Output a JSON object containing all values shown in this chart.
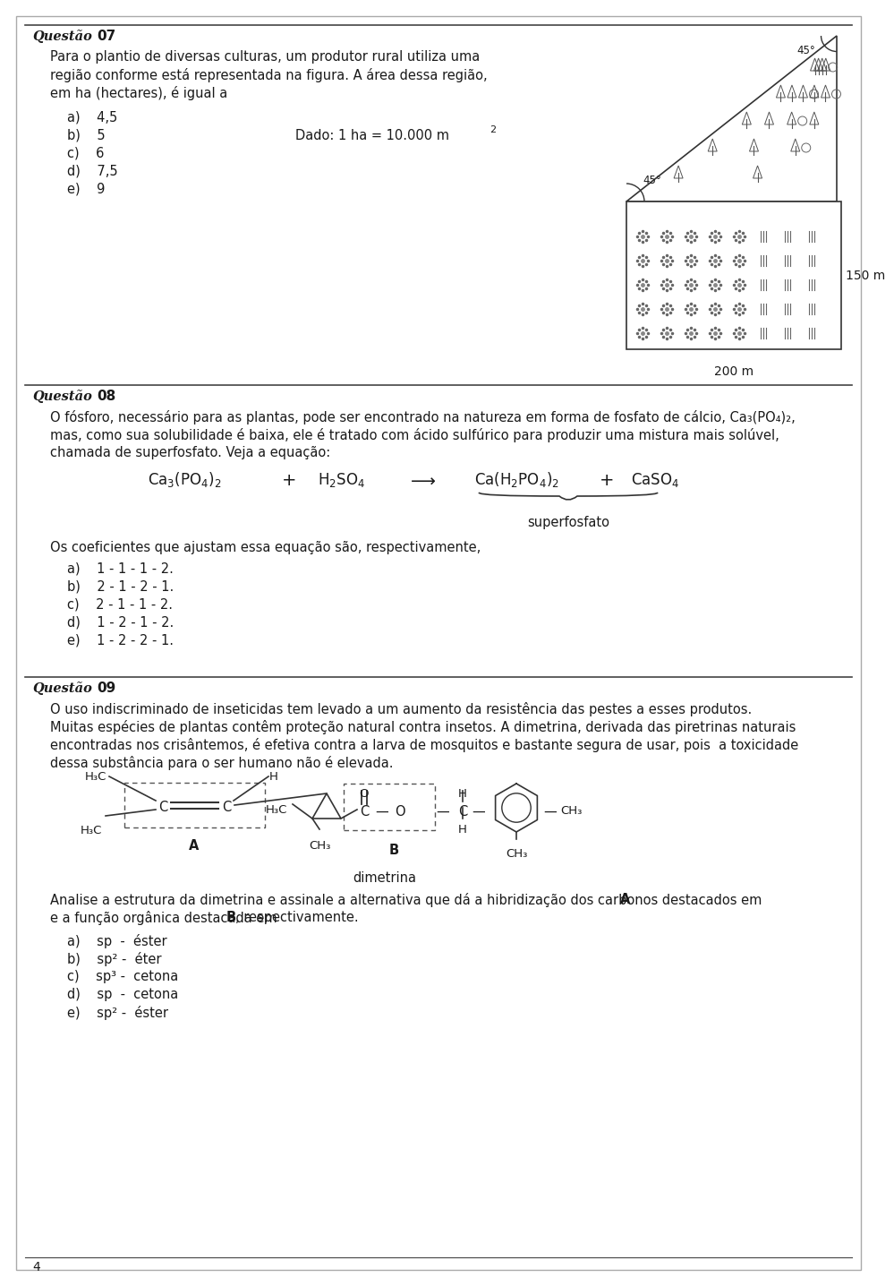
{
  "page_number": "4",
  "q07_line1": "Para o plantio de diversas culturas, um produtor rural utiliza uma",
  "q07_line2": "região conforme está representada na figura. A área dessa região,",
  "q07_line3": "em ha (hectares), é igual a",
  "q07_options": [
    "a)    4,5",
    "b)    5",
    "c)    6",
    "d)    7,5",
    "e)    9"
  ],
  "q07_dado": "Dado: 1 ha = 10.000 m",
  "q07_200m": "200 m",
  "q07_150m": "150 m",
  "q08_line1a": "O fósforo, necessário para as plantas, pode ser encontrado na natureza em forma de fosfato de cálcio, Ca",
  "q08_line1b": "(PO",
  "q08_line1c": ")",
  "q08_line1d": ",",
  "q08_line2": "mas, como sua solubilidade é baixa, ele é tratado com ácido sulfúrico para produzir uma mistura mais solúvel,",
  "q08_line3": "chamada de superfosfato. Veja a equação:",
  "q08_superfosfato": "superfosfato",
  "q08_coef_text": "Os coeficientes que ajustam essa equação são, respectivamente,",
  "q08_options": [
    "a)    1 - 1 - 1 - 2.",
    "b)    2 - 1 - 2 - 1.",
    "c)    2 - 1 - 1 - 2.",
    "d)    1 - 2 - 1 - 2.",
    "e)    1 - 2 - 2 - 1."
  ],
  "q09_line1": "O uso indiscriminado de inseticidas tem levado a um aumento da resistência das pestes a esses produtos.",
  "q09_line2": "Muitas espécies de plantas contêm proteção natural contra insetos. A dimetrina, derivada das piretrinas naturais",
  "q09_line3": "encontradas nos crisântemos, é efetiva contra a larva de mosquitos e bastante segura de usar, pois  a toxicidade",
  "q09_line4": "dessa substância para o ser humano não é elevada.",
  "q09_dimetrina": "dimetrina",
  "q09_analise1": "Analise a estrutura da dimetrina e assinale a alternativa que dá a hibridização dos carbonos destacados em ",
  "q09_analise2": "e a função orgânica destacada em ",
  "q09_analise3": ", respectivamente.",
  "q09_options": [
    "a)    sp  -  éster",
    "b)    sp² -  éter",
    "c)    sp³ -  cetona",
    "d)    sp  -  cetona",
    "e)    sp² -  éster"
  ]
}
